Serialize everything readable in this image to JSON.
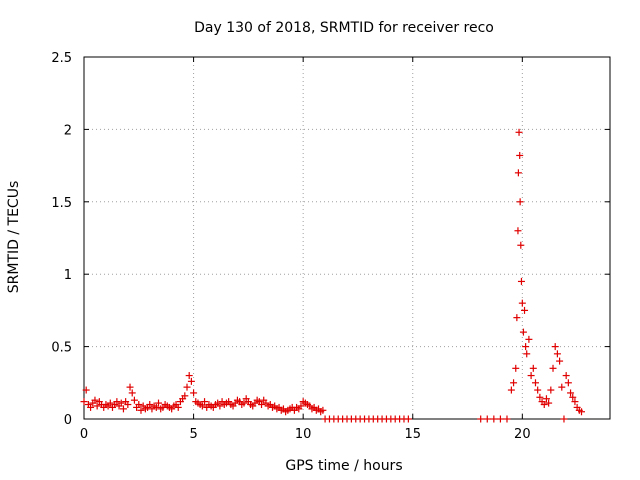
{
  "chart_data": {
    "type": "scatter",
    "title": "Day 130 of 2018, SRMTID for receiver reco",
    "xlabel": "GPS time / hours",
    "ylabel": "SRMTID / TECUs",
    "xlim": [
      0,
      24
    ],
    "ylim": [
      0,
      2.5
    ],
    "xticks": [
      0,
      5,
      10,
      15,
      20
    ],
    "xtick_labels": [
      "0",
      "5",
      "10",
      "15",
      "20"
    ],
    "yticks": [
      0,
      0.5,
      1,
      1.5,
      2,
      2.5
    ],
    "ytick_labels": [
      "0",
      "0.5",
      "1",
      "1.5",
      "2",
      "2.5"
    ],
    "grid": true,
    "marker": "+",
    "color": "#e00000",
    "series": [
      {
        "name": "SRMTID",
        "x": [
          0.0,
          0.1,
          0.2,
          0.3,
          0.4,
          0.5,
          0.6,
          0.7,
          0.8,
          0.9,
          1.0,
          1.1,
          1.2,
          1.3,
          1.4,
          1.5,
          1.6,
          1.7,
          1.8,
          1.9,
          2.0,
          2.1,
          2.2,
          2.3,
          2.4,
          2.5,
          2.6,
          2.7,
          2.8,
          2.9,
          3.0,
          3.1,
          3.2,
          3.3,
          3.4,
          3.5,
          3.6,
          3.7,
          3.8,
          3.9,
          4.0,
          4.1,
          4.2,
          4.3,
          4.4,
          4.5,
          4.6,
          4.7,
          4.8,
          4.9,
          5.0,
          5.1,
          5.2,
          5.3,
          5.4,
          5.5,
          5.6,
          5.7,
          5.8,
          5.9,
          6.0,
          6.1,
          6.2,
          6.3,
          6.4,
          6.5,
          6.6,
          6.7,
          6.8,
          6.9,
          7.0,
          7.1,
          7.2,
          7.3,
          7.4,
          7.5,
          7.6,
          7.7,
          7.8,
          7.9,
          8.0,
          8.1,
          8.2,
          8.3,
          8.4,
          8.5,
          8.6,
          8.7,
          8.8,
          8.9,
          9.0,
          9.1,
          9.2,
          9.3,
          9.4,
          9.5,
          9.6,
          9.7,
          9.8,
          9.9,
          10.0,
          10.1,
          10.2,
          10.3,
          10.4,
          10.5,
          10.6,
          10.7,
          10.8,
          10.9,
          11.0,
          11.2,
          11.4,
          11.6,
          11.8,
          12.0,
          12.2,
          12.4,
          12.6,
          12.8,
          13.0,
          13.2,
          13.4,
          13.6,
          13.8,
          14.0,
          14.2,
          14.4,
          14.6,
          14.8,
          18.1,
          18.4,
          18.7,
          19.0,
          19.3,
          19.5,
          19.6,
          19.7,
          19.75,
          19.8,
          19.82,
          19.85,
          19.88,
          19.9,
          19.93,
          19.96,
          20.0,
          20.05,
          20.1,
          20.15,
          20.2,
          20.3,
          20.4,
          20.5,
          20.6,
          20.7,
          20.8,
          20.9,
          21.0,
          21.1,
          21.2,
          21.3,
          21.4,
          21.5,
          21.6,
          21.7,
          21.8,
          21.9,
          22.0,
          22.1,
          22.2,
          22.3,
          22.4,
          22.5,
          22.6,
          22.7
        ],
        "y": [
          0.12,
          0.2,
          0.1,
          0.08,
          0.11,
          0.13,
          0.09,
          0.12,
          0.1,
          0.08,
          0.1,
          0.09,
          0.11,
          0.08,
          0.1,
          0.12,
          0.09,
          0.11,
          0.07,
          0.12,
          0.1,
          0.22,
          0.18,
          0.13,
          0.08,
          0.1,
          0.06,
          0.09,
          0.07,
          0.08,
          0.1,
          0.07,
          0.09,
          0.08,
          0.11,
          0.07,
          0.08,
          0.1,
          0.09,
          0.08,
          0.07,
          0.09,
          0.1,
          0.08,
          0.12,
          0.14,
          0.16,
          0.22,
          0.3,
          0.26,
          0.18,
          0.12,
          0.11,
          0.1,
          0.09,
          0.12,
          0.08,
          0.1,
          0.09,
          0.08,
          0.1,
          0.11,
          0.09,
          0.12,
          0.1,
          0.11,
          0.12,
          0.1,
          0.09,
          0.11,
          0.13,
          0.12,
          0.1,
          0.11,
          0.14,
          0.12,
          0.1,
          0.09,
          0.11,
          0.13,
          0.12,
          0.1,
          0.13,
          0.11,
          0.09,
          0.1,
          0.08,
          0.09,
          0.07,
          0.08,
          0.06,
          0.07,
          0.05,
          0.06,
          0.07,
          0.08,
          0.06,
          0.08,
          0.07,
          0.09,
          0.12,
          0.11,
          0.1,
          0.09,
          0.07,
          0.08,
          0.06,
          0.07,
          0.05,
          0.06,
          0.0,
          0.0,
          0.0,
          0.0,
          0.0,
          0.0,
          0.0,
          0.0,
          0.0,
          0.0,
          0.0,
          0.0,
          0.0,
          0.0,
          0.0,
          0.0,
          0.0,
          0.0,
          0.0,
          0.0,
          0.0,
          0.0,
          0.0,
          0.0,
          0.0,
          0.2,
          0.25,
          0.35,
          0.7,
          1.3,
          1.7,
          1.98,
          1.82,
          1.5,
          1.2,
          0.95,
          0.8,
          0.6,
          0.75,
          0.5,
          0.45,
          0.55,
          0.3,
          0.35,
          0.25,
          0.2,
          0.15,
          0.12,
          0.1,
          0.14,
          0.11,
          0.2,
          0.35,
          0.5,
          0.45,
          0.4,
          0.22,
          0.0,
          0.3,
          0.25,
          0.18,
          0.15,
          0.12,
          0.08,
          0.06,
          0.05
        ]
      }
    ]
  }
}
